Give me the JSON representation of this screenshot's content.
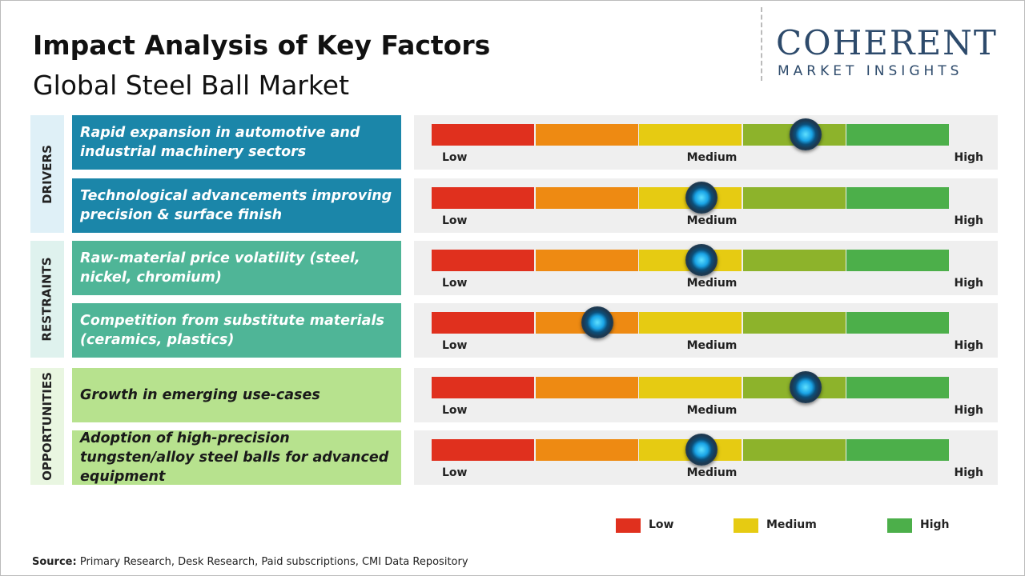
{
  "header": {
    "title": "Impact Analysis of Key Factors",
    "subtitle": "Global Steel Ball Market"
  },
  "logo": {
    "name": "COHERENT",
    "tagline": "MARKET INSIGHTS"
  },
  "scale": {
    "labels": [
      "Low",
      "Medium",
      "High"
    ],
    "range": [
      0,
      5
    ],
    "colors": [
      "#e0301e",
      "#ee8a12",
      "#e6cb12",
      "#8db32b",
      "#4caf4a"
    ]
  },
  "groups": [
    {
      "name": "DRIVERS",
      "tab_color": "#dff0f7",
      "box_color": "#1b86a9",
      "text_color": "#ffffff",
      "factors": [
        {
          "label": "Rapid expansion in automotive and industrial machinery sectors",
          "impact": 3.6
        },
        {
          "label": "Technological advancements improving precision & surface finish",
          "impact": 2.6
        }
      ]
    },
    {
      "name": "RESTRAINTS",
      "tab_color": "#dff2ee",
      "box_color": "#4fb597",
      "text_color": "#ffffff",
      "factors": [
        {
          "label": "Raw-material price volatility (steel, nickel, chromium)",
          "impact": 2.6
        },
        {
          "label": "Competition from substitute materials (ceramics, plastics)",
          "impact": 1.6
        }
      ]
    },
    {
      "name": "OPPORTUNITIES",
      "tab_color": "#e9f6e1",
      "box_color": "#b7e28e",
      "text_color": "#1a1a1a",
      "factors": [
        {
          "label": "Growth in emerging use-cases",
          "impact": 3.6
        },
        {
          "label": "Adoption of high-precision tungsten/alloy steel balls for advanced equipment",
          "impact": 2.6
        }
      ]
    }
  ],
  "legend": [
    {
      "label": "Low",
      "color": "#e0301e"
    },
    {
      "label": "Medium",
      "color": "#e6cb12"
    },
    {
      "label": "High",
      "color": "#4caf4a"
    }
  ],
  "source": {
    "label": "Source:",
    "text": "Primary Research, Desk Research, Paid subscriptions, CMI Data Repository"
  }
}
